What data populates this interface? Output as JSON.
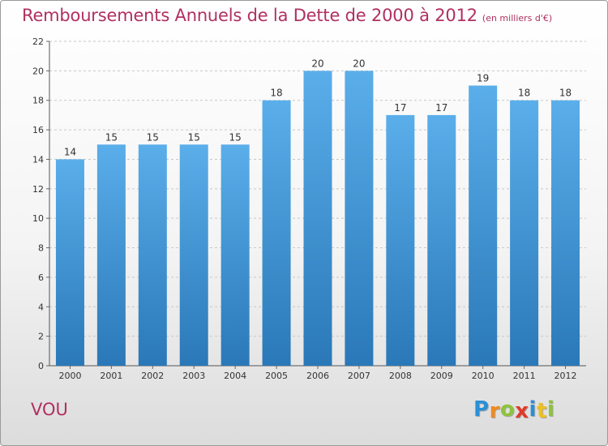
{
  "chart_data": {
    "type": "bar",
    "title": "Remboursements Annuels de la Dette de 2000 à 2012",
    "subtitle": "(en milliers d'€)",
    "categories": [
      "2000",
      "2001",
      "2002",
      "2003",
      "2004",
      "2005",
      "2006",
      "2007",
      "2008",
      "2009",
      "2010",
      "2011",
      "2012"
    ],
    "values": [
      14,
      15,
      15,
      15,
      15,
      18,
      20,
      20,
      17,
      17,
      19,
      18,
      18
    ],
    "ylim": [
      0,
      22
    ],
    "yticks": [
      0,
      2,
      4,
      6,
      8,
      10,
      12,
      14,
      16,
      18,
      20,
      22
    ],
    "grid": true,
    "xlabel": "",
    "ylabel": "",
    "bar_color_top": "#5aaeea",
    "bar_color_bottom": "#2a78b8",
    "title_color": "#b03060"
  },
  "footer": {
    "commune": "VOU"
  },
  "logo": {
    "letters": [
      "P",
      "r",
      "o",
      "x",
      "i",
      "t",
      "i"
    ],
    "colors": [
      "#2a8fd6",
      "#f08a1c",
      "#8ec33c",
      "#e03a2a",
      "#2a8fd6",
      "#f0c01c",
      "#8ec33c"
    ]
  }
}
